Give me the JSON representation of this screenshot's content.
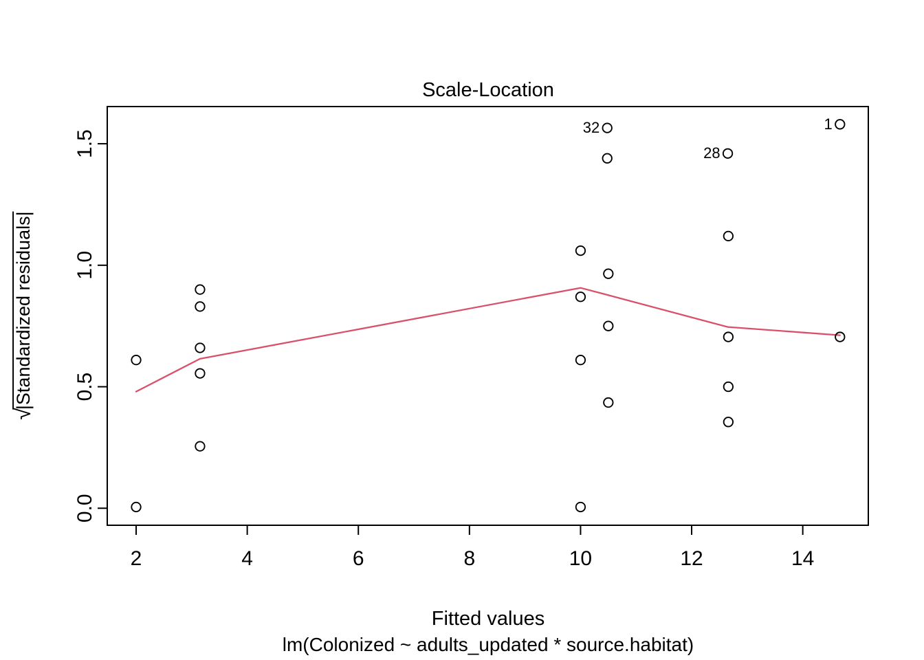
{
  "title": "Scale-Location",
  "x_axis": {
    "label": "Fitted values",
    "formula": "lm(Colonized ~ adults_updated * source.habitat)"
  },
  "y_axis": {
    "sqrt_sign": "√",
    "label_text": "|Standardized residuals|",
    "tick_labels": [
      "0.0",
      "0.5",
      "1.0",
      "1.5"
    ]
  },
  "colors": {
    "smooth_line": "#D8506A",
    "points": "#000000",
    "axis": "#000000",
    "background": "#FFFFFF"
  },
  "chart_data": {
    "type": "scatter",
    "title": "Scale-Location",
    "xlabel": "Fitted values",
    "xlabel_sub": "lm(Colonized ~ adults_updated * source.habitat)",
    "ylabel": "sqrt(|Standardized residuals|)",
    "xlim": [
      1.48,
      15.18
    ],
    "ylim": [
      -0.07,
      1.653
    ],
    "x_ticks": [
      2,
      4,
      6,
      8,
      10,
      12,
      14
    ],
    "y_ticks": [
      0.0,
      0.5,
      1.0,
      1.5
    ],
    "grid": false,
    "legend": null,
    "points": [
      {
        "x": 2.0,
        "y": 0.61
      },
      {
        "x": 2.0,
        "y": 0.005
      },
      {
        "x": 3.15,
        "y": 0.9
      },
      {
        "x": 3.15,
        "y": 0.83
      },
      {
        "x": 3.15,
        "y": 0.66
      },
      {
        "x": 3.15,
        "y": 0.555
      },
      {
        "x": 3.15,
        "y": 0.255
      },
      {
        "x": 10.0,
        "y": 1.06
      },
      {
        "x": 10.0,
        "y": 0.87
      },
      {
        "x": 10.0,
        "y": 0.61
      },
      {
        "x": 10.0,
        "y": 0.005
      },
      {
        "x": 10.48,
        "y": 1.565,
        "label": "32"
      },
      {
        "x": 10.48,
        "y": 1.44
      },
      {
        "x": 10.5,
        "y": 0.965
      },
      {
        "x": 10.5,
        "y": 0.75
      },
      {
        "x": 10.5,
        "y": 0.435
      },
      {
        "x": 12.65,
        "y": 1.46,
        "label": "28"
      },
      {
        "x": 12.66,
        "y": 1.12
      },
      {
        "x": 12.66,
        "y": 0.705
      },
      {
        "x": 12.66,
        "y": 0.5
      },
      {
        "x": 12.66,
        "y": 0.355
      },
      {
        "x": 14.67,
        "y": 1.58,
        "label": "1"
      },
      {
        "x": 14.67,
        "y": 0.705
      }
    ],
    "smooth_line": {
      "name": "lowess-smooth",
      "points": [
        [
          2.0,
          0.48
        ],
        [
          3.15,
          0.615
        ],
        [
          10.0,
          0.907
        ],
        [
          10.48,
          0.878
        ],
        [
          12.65,
          0.746
        ],
        [
          14.67,
          0.712
        ]
      ]
    }
  }
}
